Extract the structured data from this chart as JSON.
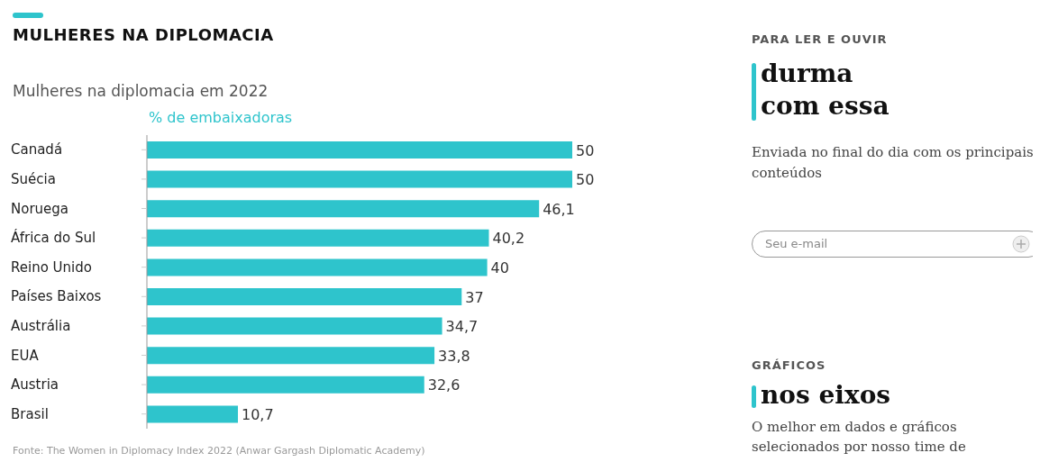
{
  "chart_data": [
    {
      "type": "bar",
      "orientation": "horizontal",
      "title": "MULHERES NA DIPLOMACIA",
      "subtitle": "Mulheres na diplomacia em 2022",
      "xlabel": "% de embaixadoras",
      "categories": [
        "Canadá",
        "Suécia",
        "Noruega",
        "África do Sul",
        "Reino Unido",
        "Países Baixos",
        "Austrália",
        "EUA",
        "Austria",
        "Brasil"
      ],
      "values": [
        50,
        50,
        46.1,
        40.2,
        40,
        37,
        34.7,
        33.8,
        32.6,
        10.7
      ],
      "value_labels": [
        "50",
        "50",
        "46,1",
        "40,2",
        "40",
        "37",
        "34,7",
        "33,8",
        "32,6",
        "10,7"
      ],
      "color": "#2ec4cc",
      "annotations": [
        "Fonte: The Women in Diplomacy Index 2022 (Anwar Gargash Diplomatic Academy)"
      ]
    },
    {
      "type": "other",
      "annotations": [
        "PARA LER E OUVIR",
        "durma com essa",
        "Enviada no final do dia com os principais conteúdos",
        "Seu e-mail",
        "GRÁFICOS",
        "nos eixos",
        "O melhor em dados e gráficos selecionados por nosso time de"
      ]
    }
  ]
}
